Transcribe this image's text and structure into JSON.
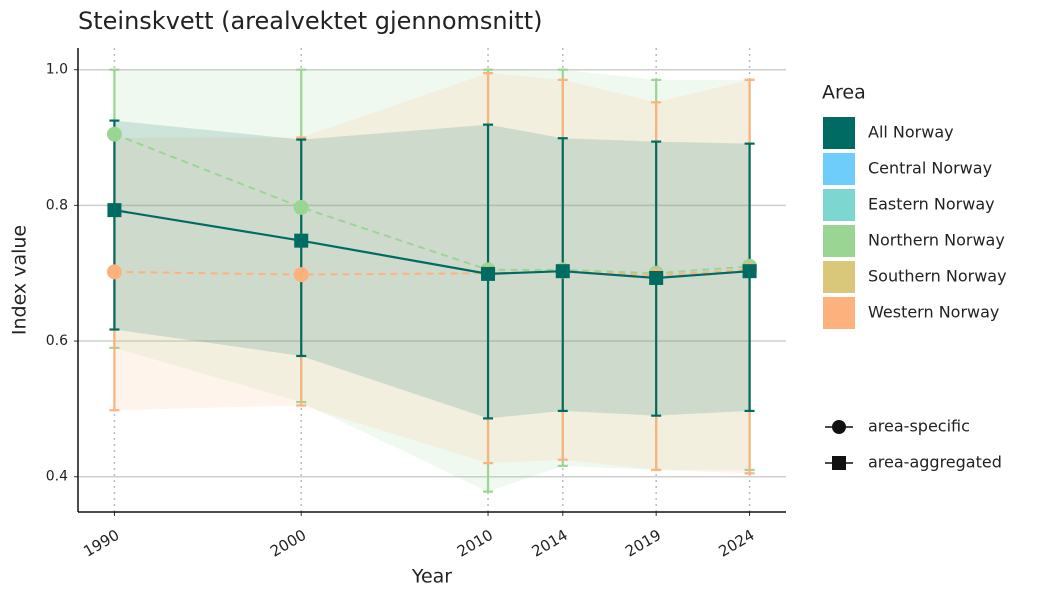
{
  "chart_data": {
    "type": "line",
    "title": "Steinskvett (arealvektet gjennomsnitt)",
    "x_label": "Year",
    "y_label": "Index value",
    "x": [
      1990,
      2000,
      2010,
      2014,
      2019,
      2024
    ],
    "xlim": [
      1988.05,
      2025.95
    ],
    "xticks": [
      1990,
      2000,
      2010,
      2014,
      2019,
      2024
    ],
    "ylim": [
      0.348,
      1.032
    ],
    "yticks": [
      0.4,
      0.6,
      0.8,
      {
        "value": 1.0,
        "label": "1.0"
      }
    ],
    "grid": true,
    "series": [
      {
        "name": "Northern Norway",
        "color": "#9bd594",
        "shape": "circle",
        "dashed": true,
        "values": [
          0.905,
          0.797,
          0.705,
          0.705,
          0.7,
          0.71
        ],
        "lower": [
          0.59,
          0.51,
          0.378,
          0.416,
          0.41,
          0.41
        ],
        "upper": [
          1.0,
          1.0,
          1.0,
          1.0,
          0.985,
          0.985
        ]
      },
      {
        "name": "Western Norway",
        "color": "#fdb27e",
        "shape": "circle",
        "dashed": true,
        "values": [
          0.702,
          0.698,
          0.7,
          0.703,
          0.697,
          0.705
        ],
        "lower": [
          0.498,
          0.505,
          0.42,
          0.425,
          0.41,
          0.405
        ],
        "upper": [
          0.9,
          0.9,
          0.995,
          0.985,
          0.952,
          0.985
        ]
      },
      {
        "name": "All Norway",
        "color": "#006b63",
        "shape": "square",
        "dashed": false,
        "values": [
          0.793,
          0.748,
          0.699,
          0.703,
          0.693,
          0.703
        ],
        "lower": [
          0.617,
          0.578,
          0.486,
          0.497,
          0.49,
          0.497
        ],
        "upper": [
          0.925,
          0.897,
          0.919,
          0.899,
          0.894,
          0.891
        ]
      }
    ],
    "legend": {
      "title": "Area",
      "items": [
        {
          "name": "All Norway",
          "color": "#006b63"
        },
        {
          "name": "Central Norway",
          "color": "#6fcdfb"
        },
        {
          "name": "Eastern Norway",
          "color": "#7dd6cf"
        },
        {
          "name": "Northern Norway",
          "color": "#9bd594"
        },
        {
          "name": "Southern Norway",
          "color": "#d9c87a"
        },
        {
          "name": "Western Norway",
          "color": "#fdb27e"
        }
      ]
    },
    "shape_legend": [
      {
        "label": "area-specific",
        "shape": "circle"
      },
      {
        "label": "area-aggregated",
        "shape": "square"
      }
    ]
  }
}
